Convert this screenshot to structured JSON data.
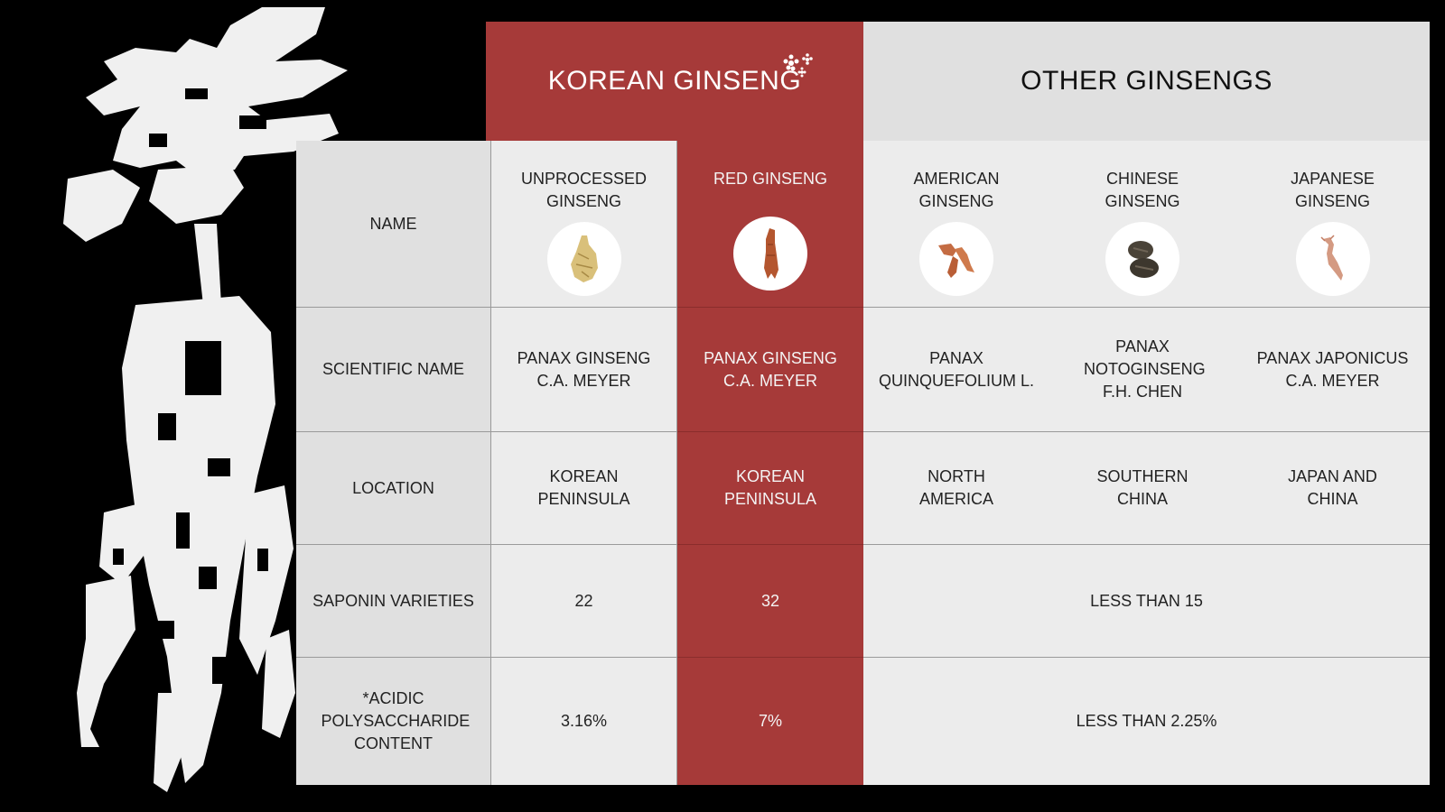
{
  "header": {
    "korean_title": "KOREAN GINSENG",
    "other_title": "OTHER GINSENGS"
  },
  "colors": {
    "accent_red": "#a63a39",
    "panel_light": "#ececec",
    "panel_label": "#e0e0e0"
  },
  "row_labels": {
    "name": "NAME",
    "scientific": "SCIENTIFIC NAME",
    "location": "LOCATION",
    "saponin": "SAPONIN VARIETIES",
    "acidic": "*ACIDIC POLYSACCHARIDE CONTENT"
  },
  "columns": [
    {
      "name": "UNPROCESSED GINSENG",
      "icon": "unprocessed-ginseng-root-icon",
      "scientific": "PANAX GINSENG C.A. MEYER",
      "location": "KOREAN PENINSULA",
      "saponin": "22",
      "acidic": "3.16%"
    },
    {
      "name": "RED GINSENG",
      "icon": "red-ginseng-root-icon",
      "scientific": "PANAX GINSENG C.A. MEYER",
      "location": "KOREAN PENINSULA",
      "saponin": "32",
      "acidic": "7%"
    },
    {
      "name": "AMERICAN GINSENG",
      "icon": "american-ginseng-root-icon",
      "scientific": "PANAX QUINQUEFOLIUM L.",
      "location": "NORTH AMERICA"
    },
    {
      "name": "CHINESE GINSENG",
      "icon": "chinese-ginseng-root-icon",
      "scientific": "PANAX NOTOGINSENG F.H. CHEN",
      "location": "SOUTHERN CHINA"
    },
    {
      "name": "JAPANESE GINSENG",
      "icon": "japanese-ginseng-root-icon",
      "scientific": "PANAX JAPONICUS C.A. MEYER",
      "location": "JAPAN AND CHINA"
    }
  ],
  "others_shared": {
    "saponin": "LESS THAN 15",
    "acidic": "LESS THAN 2.25%"
  }
}
